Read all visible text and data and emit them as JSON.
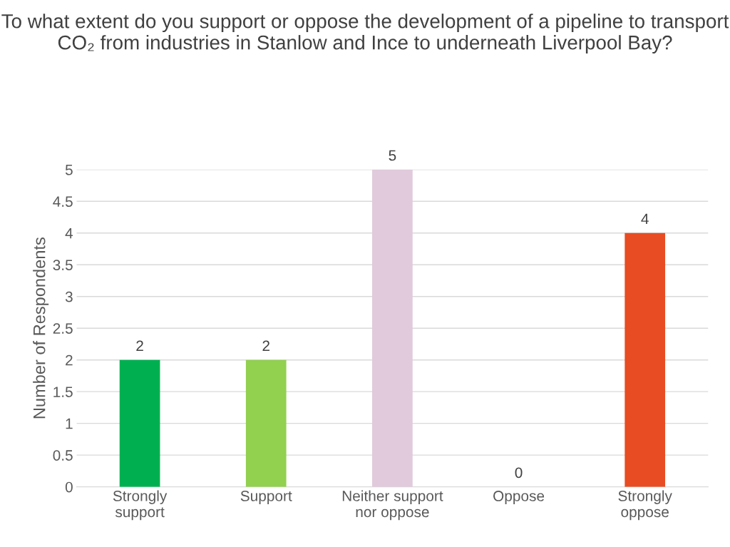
{
  "chart_data": {
    "type": "bar",
    "title": "To what extent do you support or oppose the development of a pipeline to transport CO₂ from industries in Stanlow and Ince to underneath Liverpool Bay?",
    "ylabel": "Number of Respondents",
    "categories": [
      "Strongly\nsupport",
      "Support",
      "Neither support\nnor oppose",
      "Oppose",
      "Strongly\noppose"
    ],
    "values": [
      2,
      2,
      5,
      0,
      4
    ],
    "colors": [
      "#00b050",
      "#92d050",
      "#e0cadb",
      "#a5a5a5",
      "#e84c22"
    ],
    "ylim": [
      0,
      5
    ],
    "yticks": [
      0,
      {
        "value": 0.5,
        "label": "0.5"
      },
      1,
      {
        "value": 1.5,
        "label": "1.5"
      },
      2,
      {
        "value": 2.5,
        "label": "2.5"
      },
      3,
      {
        "value": 3.5,
        "label": "3.5"
      },
      4,
      {
        "value": 4.5,
        "label": "4.5"
      },
      5
    ],
    "grid": "y",
    "data_labels": true
  }
}
